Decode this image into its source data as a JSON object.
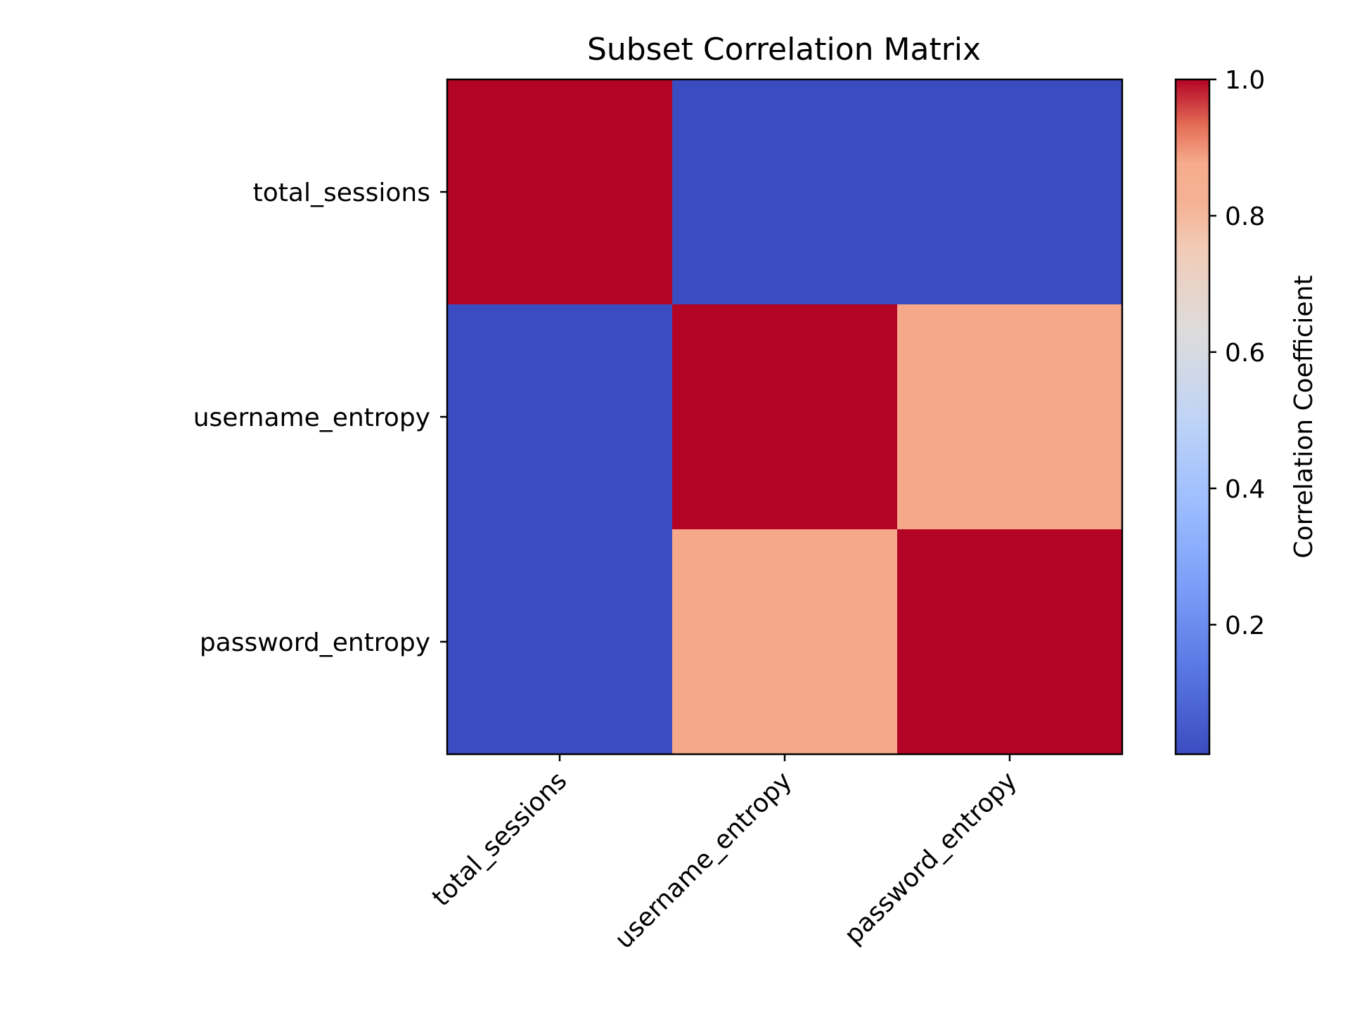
{
  "chart_data": {
    "type": "heatmap",
    "title": "Subset Correlation Matrix",
    "xlabel": "",
    "ylabel": "",
    "x_categories": [
      "total_sessions",
      "username_entropy",
      "password_entropy"
    ],
    "y_categories": [
      "total_sessions",
      "username_entropy",
      "password_entropy"
    ],
    "values": [
      [
        1.0,
        0.01,
        0.01
      ],
      [
        0.01,
        1.0,
        0.88
      ],
      [
        0.01,
        0.88,
        1.0
      ]
    ],
    "colormap": "coolwarm",
    "value_range": [
      0.01,
      1.0
    ],
    "grid": false,
    "colorbar": {
      "label": "Correlation Coefficient",
      "ticks": [
        "0.2",
        "0.4",
        "0.6",
        "0.8",
        "1.0"
      ],
      "tick_values": [
        0.2,
        0.4,
        0.6,
        0.8,
        1.0
      ],
      "placement": "right"
    },
    "x_tick_rotation_deg": 45
  }
}
